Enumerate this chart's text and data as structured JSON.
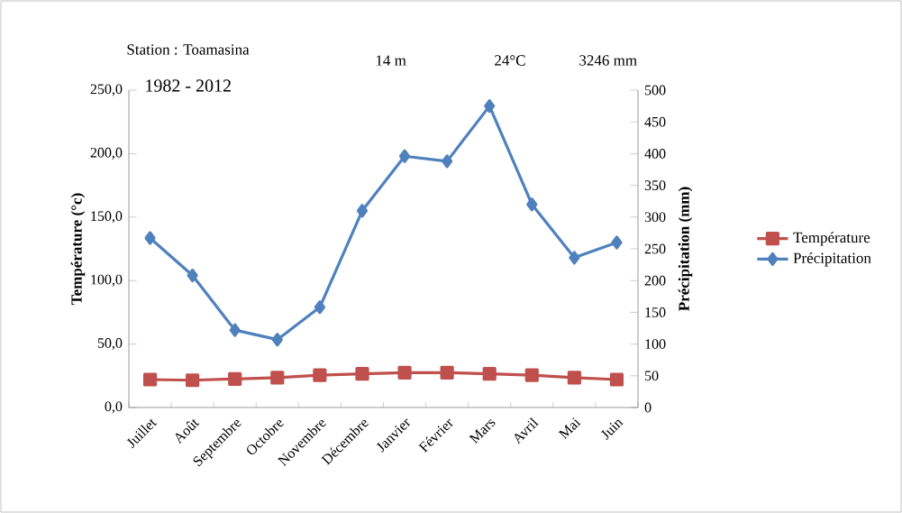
{
  "chart_data": {
    "type": "line",
    "categories": [
      "Juillet",
      "Août",
      "Septembre",
      "Octobre",
      "Novembre",
      "Décembre",
      "Janvier",
      "Février",
      "Mars",
      "Avril",
      "Mai",
      "Juin"
    ],
    "series": [
      {
        "name": "Température",
        "color": "#c0504d",
        "marker": "square",
        "values": [
          22,
          21.5,
          22.5,
          23.5,
          25.5,
          26.5,
          27.5,
          27.5,
          26.5,
          25.5,
          23.5,
          22
        ]
      },
      {
        "name": "Précipitation",
        "color": "#4f81bd",
        "marker": "diamond",
        "axis": "y2",
        "values": [
          267,
          208,
          122,
          107,
          158,
          310,
          396,
          388,
          475,
          320,
          236,
          260
        ]
      }
    ],
    "ylabel": "Température (°c)",
    "y2label": "Précipitation (mm)",
    "ylim": [
      0,
      250
    ],
    "yticks": [
      {
        "value": 0,
        "label": "0,0"
      },
      {
        "value": 50,
        "label": "50,0"
      },
      {
        "value": 100,
        "label": "100,0"
      },
      {
        "value": 150,
        "label": "150,0"
      },
      {
        "value": 200,
        "label": "200,0"
      },
      {
        "value": 250,
        "label": "250,0"
      }
    ],
    "y2lim": [
      0,
      500
    ],
    "y2ticks": [
      0,
      50,
      100,
      150,
      200,
      250,
      300,
      350,
      400,
      450,
      500
    ],
    "annotations": [
      "Station : Toamasina",
      "1982 - 2012",
      "14 m",
      "24°C",
      "3246 mm"
    ],
    "legend": "right",
    "grid": false
  }
}
